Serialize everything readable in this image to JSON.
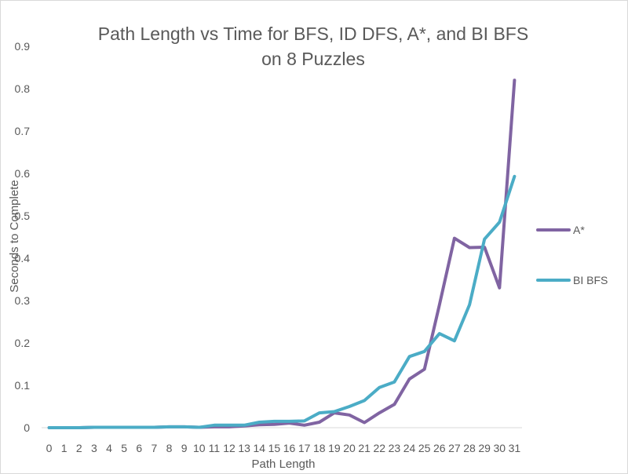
{
  "chart_data": {
    "type": "line",
    "title": "Path Length vs Time for BFS, ID DFS, A*, and BI BFS",
    "subtitle": "on 8 Puzzles",
    "xlabel": "Path Length",
    "ylabel": "Seconds to Complete",
    "ylim": [
      0,
      0.9
    ],
    "yticks": [
      "0",
      "0.1",
      "0.2",
      "0.3",
      "0.4",
      "0.5",
      "0.6",
      "0.7",
      "0.8",
      "0.9"
    ],
    "grid": false,
    "legend_position": "right",
    "categories": [
      "0",
      "1",
      "2",
      "3",
      "4",
      "5",
      "6",
      "7",
      "8",
      "9",
      "10",
      "11",
      "12",
      "13",
      "14",
      "15",
      "16",
      "17",
      "18",
      "19",
      "20",
      "21",
      "22",
      "23",
      "24",
      "25",
      "26",
      "27",
      "28",
      "29",
      "30",
      "31"
    ],
    "series": [
      {
        "name": "A*",
        "color": "#8064a2",
        "values": [
          0,
          0,
          0,
          0.001,
          0.001,
          0.001,
          0.001,
          0.001,
          0.002,
          0.002,
          0.001,
          0.002,
          0.002,
          0.004,
          0.007,
          0.008,
          0.011,
          0.006,
          0.013,
          0.035,
          0.03,
          0.012,
          0.035,
          0.055,
          0.115,
          0.138,
          0.29,
          0.447,
          0.425,
          0.426,
          0.33,
          0.82
        ]
      },
      {
        "name": "BI BFS",
        "color": "#4bacc6",
        "values": [
          0,
          0,
          0,
          0.001,
          0.001,
          0.001,
          0.001,
          0.001,
          0.002,
          0.002,
          0.001,
          0.006,
          0.006,
          0.006,
          0.013,
          0.015,
          0.015,
          0.016,
          0.035,
          0.038,
          0.05,
          0.064,
          0.095,
          0.108,
          0.168,
          0.18,
          0.222,
          0.205,
          0.29,
          0.445,
          0.485,
          0.593
        ]
      }
    ]
  }
}
